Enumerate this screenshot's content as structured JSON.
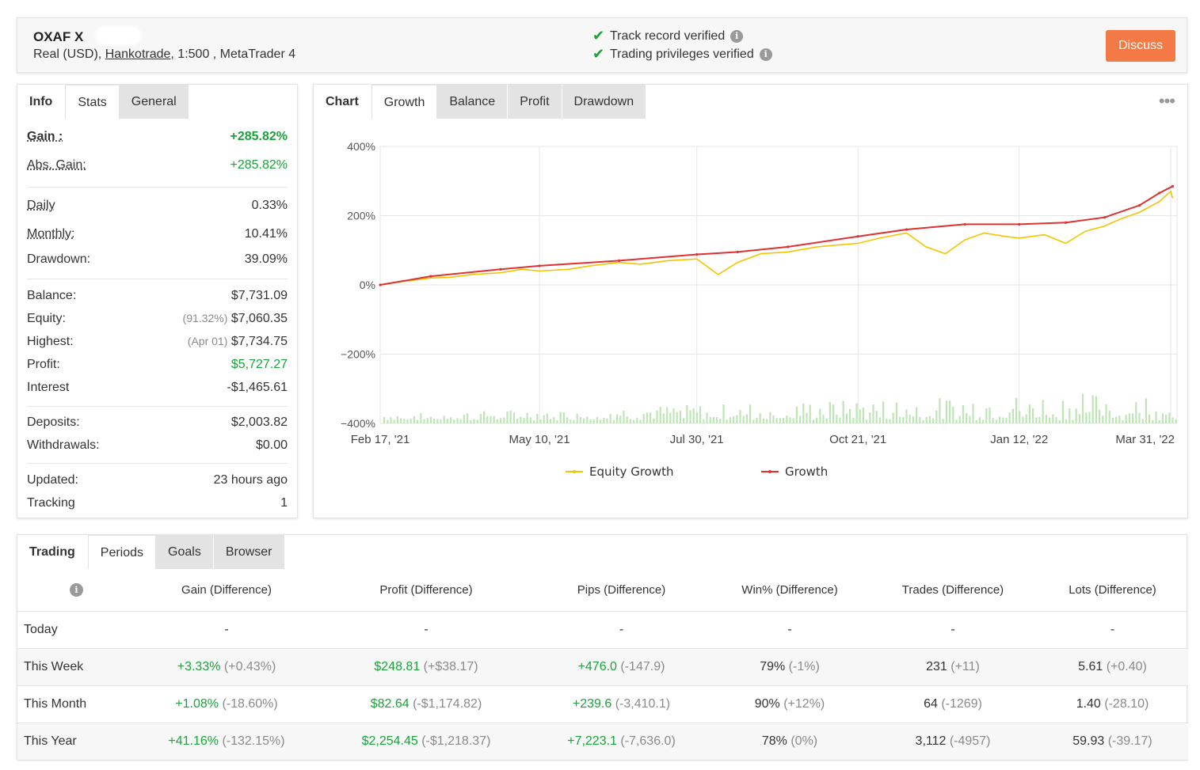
{
  "account": {
    "name": "OXAF X",
    "type_currency": "Real (USD),",
    "broker": "Hankotrade",
    "leverage_platform": ", 1:500 , MetaTrader 4",
    "verifications": [
      "Track record verified",
      "Trading privileges verified"
    ],
    "discuss_label": "Discuss"
  },
  "info_tabs": [
    "Info",
    "Stats",
    "General"
  ],
  "stats": {
    "gain": {
      "label": "Gain :",
      "value": "+285.82%"
    },
    "abs_gain": {
      "label": "Abs. Gain:",
      "value": "+285.82%"
    },
    "daily": {
      "label": "Daily",
      "value": "0.33%"
    },
    "monthly": {
      "label": "Monthly:",
      "value": "10.41%"
    },
    "drawdown": {
      "label": "Drawdown:",
      "value": "39.09%"
    },
    "balance": {
      "label": "Balance:",
      "value": "$7,731.09"
    },
    "equity": {
      "label": "Equity:",
      "note": "(91.32%)",
      "value": "$7,060.35"
    },
    "highest": {
      "label": "Highest:",
      "note": "(Apr 01)",
      "value": "$7,734.75"
    },
    "profit": {
      "label": "Profit:",
      "value": "$5,727.27"
    },
    "interest": {
      "label": "Interest",
      "value": "-$1,465.61"
    },
    "deposits": {
      "label": "Deposits:",
      "value": "$2,003.82"
    },
    "withdrawals": {
      "label": "Withdrawals:",
      "value": "$0.00"
    },
    "updated": {
      "label": "Updated:",
      "value": "23 hours ago"
    },
    "tracking": {
      "label": "Tracking",
      "value": "1"
    }
  },
  "chart_tabs": [
    "Chart",
    "Growth",
    "Balance",
    "Profit",
    "Drawdown"
  ],
  "chart_data": {
    "type": "line",
    "x_tick_labels": [
      "Feb 17, '21",
      "May 10, '21",
      "Jul 30, '21",
      "Oct 21, '21",
      "Jan 12, '22",
      "Mar 31, '22"
    ],
    "y_tick_labels": [
      "400%",
      "200%",
      "0%",
      "−200%",
      "−400%"
    ],
    "ylim": [
      -400,
      400
    ],
    "grid": true,
    "legend_position": "bottom",
    "series": [
      {
        "name": "Equity Growth",
        "color": "#f5c400",
        "x": [
          "2021-02-17",
          "2021-03-01",
          "2021-03-15",
          "2021-03-25",
          "2021-04-05",
          "2021-04-20",
          "2021-05-01",
          "2021-05-10",
          "2021-05-25",
          "2021-06-05",
          "2021-06-20",
          "2021-07-01",
          "2021-07-15",
          "2021-07-30",
          "2021-08-10",
          "2021-08-20",
          "2021-09-01",
          "2021-09-15",
          "2021-09-30",
          "2021-10-10",
          "2021-10-21",
          "2021-11-01",
          "2021-11-15",
          "2021-11-25",
          "2021-12-05",
          "2021-12-15",
          "2021-12-25",
          "2022-01-05",
          "2022-01-12",
          "2022-01-25",
          "2022-02-05",
          "2022-02-15",
          "2022-02-25",
          "2022-03-05",
          "2022-03-15",
          "2022-03-25",
          "2022-03-31",
          "2022-04-01"
        ],
        "y": [
          0,
          10,
          20,
          22,
          30,
          35,
          45,
          40,
          45,
          55,
          65,
          60,
          70,
          75,
          30,
          65,
          90,
          95,
          110,
          115,
          120,
          135,
          150,
          110,
          90,
          130,
          150,
          140,
          135,
          145,
          120,
          155,
          170,
          190,
          210,
          240,
          270,
          250
        ]
      },
      {
        "name": "Growth",
        "color": "#e03131",
        "x": [
          "2021-02-17",
          "2021-03-15",
          "2021-04-20",
          "2021-05-10",
          "2021-06-20",
          "2021-07-30",
          "2021-08-20",
          "2021-09-15",
          "2021-10-21",
          "2021-11-15",
          "2021-12-15",
          "2022-01-12",
          "2022-02-05",
          "2022-02-25",
          "2022-03-15",
          "2022-03-25",
          "2022-04-01"
        ],
        "y": [
          0,
          25,
          45,
          55,
          70,
          88,
          95,
          110,
          140,
          160,
          175,
          175,
          180,
          195,
          230,
          265,
          285
        ]
      }
    ]
  },
  "trading_tabs": [
    "Trading",
    "Periods",
    "Goals",
    "Browser"
  ],
  "periods": {
    "headers": [
      "Gain (Difference)",
      "Profit (Difference)",
      "Pips (Difference)",
      "Win% (Difference)",
      "Trades (Difference)",
      "Lots (Difference)"
    ],
    "rows": [
      {
        "label": "Today",
        "cells": [
          [
            "-",
            ""
          ],
          [
            "-",
            ""
          ],
          [
            "-",
            ""
          ],
          [
            "-",
            ""
          ],
          [
            "-",
            ""
          ],
          [
            "-",
            ""
          ]
        ]
      },
      {
        "label": "This Week",
        "cells": [
          [
            "+3.33%",
            "(+0.43%)"
          ],
          [
            "$248.81",
            "(+$38.17)"
          ],
          [
            "+476.0",
            "(-147.9)"
          ],
          [
            "79%",
            "(-1%)"
          ],
          [
            "231",
            "(+11)"
          ],
          [
            "5.61",
            "(+0.40)"
          ]
        ]
      },
      {
        "label": "This Month",
        "cells": [
          [
            "+1.08%",
            "(-18.60%)"
          ],
          [
            "$82.64",
            "(-$1,174.82)"
          ],
          [
            "+239.6",
            "(-3,410.1)"
          ],
          [
            "90%",
            "(+12%)"
          ],
          [
            "64",
            "(-1269)"
          ],
          [
            "1.40",
            "(-28.10)"
          ]
        ]
      },
      {
        "label": "This Year",
        "cells": [
          [
            "+41.16%",
            "(-132.15%)"
          ],
          [
            "$2,254.45",
            "(-$1,218.37)"
          ],
          [
            "+7,223.1",
            "(-7,636.0)"
          ],
          [
            "78%",
            "(0%)"
          ],
          [
            "3,112",
            "(-4957)"
          ],
          [
            "59.93",
            "(-39.17)"
          ]
        ]
      }
    ]
  }
}
